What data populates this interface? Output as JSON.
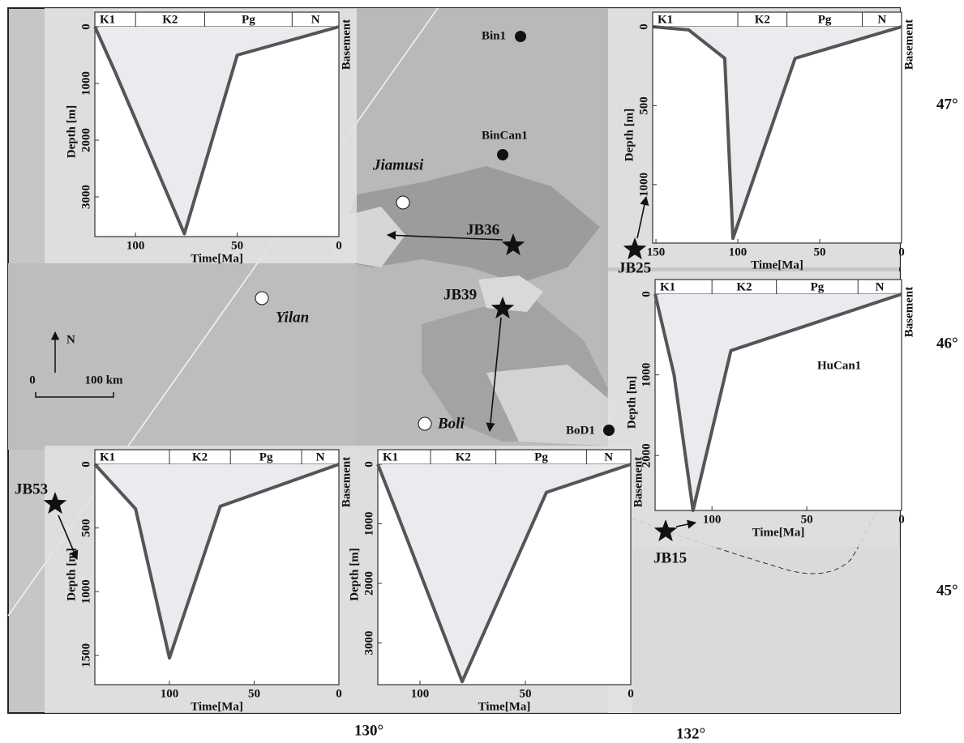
{
  "map": {
    "places": [
      "Jiamusi",
      "Yilan",
      "Boli"
    ],
    "wells": [
      "Bin1",
      "BinCan1",
      "BoD1"
    ],
    "stations": [
      "JB36",
      "JB39",
      "JB25",
      "JB53",
      "JB15"
    ],
    "latitudes": [
      "47°",
      "46°",
      "45°"
    ],
    "longitudes": [
      "130°",
      "132°"
    ],
    "north": "N",
    "scale": [
      "0",
      "100 km"
    ]
  },
  "insets": [
    {
      "periods": [
        "K1",
        "K2",
        "Pg",
        "N"
      ],
      "period_boundaries": [
        100,
        66,
        23
      ],
      "x_label": "Time[Ma]",
      "y_label": "Depth [m]",
      "basement_label": "Basement",
      "xlim": [
        120,
        0
      ],
      "ylim": [
        0,
        3700
      ],
      "xticks": [
        100,
        50,
        0
      ],
      "yticks": [
        0,
        1000,
        2000,
        3000
      ],
      "x": [
        120,
        110,
        76,
        50,
        0
      ],
      "values": [
        0,
        800,
        3650,
        500,
        0
      ]
    },
    {
      "periods": [
        "K1",
        "K2",
        "Pg",
        "N"
      ],
      "period_boundaries": [
        100,
        70,
        24
      ],
      "x_label": "Time[Ma]",
      "y_label": "Depth [m]",
      "basement_label": "Basement",
      "xlim": [
        152,
        0
      ],
      "ylim": [
        0,
        1370
      ],
      "xticks": [
        150,
        100,
        50,
        0
      ],
      "yticks": [
        0,
        500,
        1000
      ],
      "x": [
        152,
        130,
        108,
        103,
        65,
        0
      ],
      "values": [
        0,
        20,
        200,
        1340,
        200,
        0
      ]
    },
    {
      "name": "HuCan1",
      "periods": [
        "K1",
        "K2",
        "Pg",
        "N"
      ],
      "period_boundaries": [
        100,
        66,
        23
      ],
      "x_label": "Time[Ma]",
      "y_label": "Depth [m]",
      "basement_label": "Basement",
      "xlim": [
        130,
        0
      ],
      "ylim": [
        0,
        2680
      ],
      "xticks": [
        100,
        50,
        0
      ],
      "yticks": [
        0,
        1000,
        2000
      ],
      "x": [
        130,
        120,
        110,
        90,
        0
      ],
      "values": [
        0,
        1000,
        2680,
        700,
        0
      ]
    },
    {
      "periods": [
        "K1",
        "K2",
        "Pg",
        "N"
      ],
      "period_boundaries": [
        100,
        64,
        22
      ],
      "x_label": "Time[Ma]",
      "y_label": "Depth [m]",
      "basement_label": "Basement",
      "xlim": [
        144,
        0
      ],
      "ylim": [
        0,
        1730
      ],
      "xticks": [
        100,
        50,
        0
      ],
      "yticks": [
        0,
        500,
        1000,
        1500
      ],
      "x": [
        144,
        120,
        100,
        70,
        0
      ],
      "values": [
        0,
        350,
        1520,
        330,
        0
      ]
    },
    {
      "periods": [
        "K1",
        "K2",
        "Pg",
        "N"
      ],
      "period_boundaries": [
        95,
        64,
        21
      ],
      "x_label": "Time[Ma]",
      "y_label": "Depth [m]",
      "basement_label": "Basement",
      "xlim": [
        120,
        0
      ],
      "ylim": [
        0,
        3700
      ],
      "xticks": [
        100,
        50,
        0
      ],
      "yticks": [
        0,
        1000,
        2000,
        3000
      ],
      "x": [
        120,
        110,
        80,
        40,
        0
      ],
      "values": [
        0,
        900,
        3650,
        470,
        0
      ]
    }
  ]
}
